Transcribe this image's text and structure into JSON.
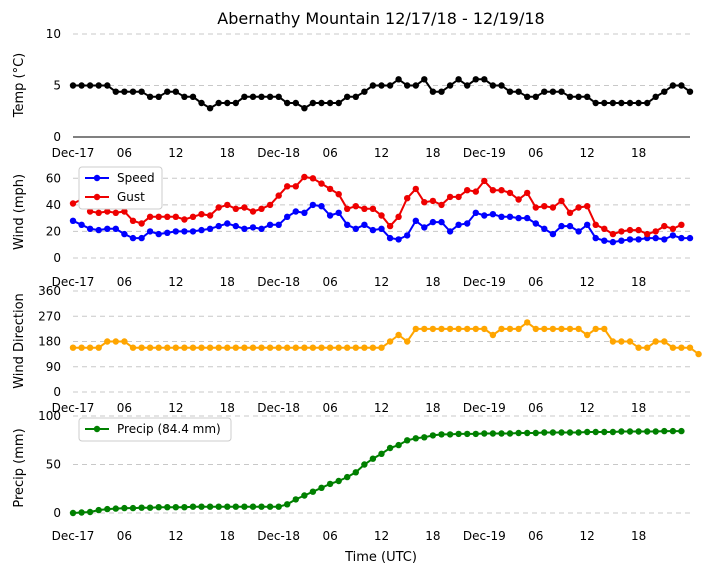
{
  "chart_data": {
    "title": "Abernathy Mountain 12/17/18 - 12/19/18",
    "xlabel": "Time (UTC)",
    "x_tick_labels": [
      "Dec-17",
      "06",
      "12",
      "18",
      "Dec-18",
      "06",
      "12",
      "18",
      "Dec-19",
      "06",
      "12",
      "18"
    ],
    "x_tick_hours": [
      0,
      6,
      12,
      18,
      24,
      30,
      36,
      42,
      48,
      54,
      60,
      66
    ],
    "x_range_hours": [
      0,
      72
    ],
    "panels": [
      {
        "type": "line",
        "ylabel": "Temp (°C)",
        "ylim": [
          0,
          10
        ],
        "yticks": [
          0,
          5,
          10
        ],
        "grid": true,
        "series": [
          {
            "name": "Temp",
            "color": "#000000",
            "values": [
              5,
              5,
              5,
              5,
              5,
              4.4,
              4.4,
              4.4,
              4.4,
              3.9,
              3.9,
              4.4,
              4.4,
              3.9,
              3.9,
              3.3,
              2.8,
              3.3,
              3.3,
              3.3,
              3.9,
              3.9,
              3.9,
              3.9,
              3.9,
              3.3,
              3.3,
              2.8,
              3.3,
              3.3,
              3.3,
              3.3,
              3.9,
              3.9,
              4.4,
              5,
              5,
              5,
              5.6,
              5,
              5,
              5.6,
              4.4,
              4.4,
              5,
              5.6,
              5,
              5.6,
              5.6,
              5,
              5,
              4.4,
              4.4,
              3.9,
              3.9,
              4.4,
              4.4,
              4.4,
              3.9,
              3.9,
              3.9,
              3.3,
              3.3,
              3.3,
              3.3,
              3.3,
              3.3,
              3.3,
              3.9,
              4.4,
              5,
              5,
              4.4
            ]
          }
        ]
      },
      {
        "type": "line",
        "ylabel": "Wind (mph)",
        "ylim": [
          0,
          70
        ],
        "yticks": [
          0,
          20,
          40,
          60
        ],
        "grid": true,
        "legend": {
          "position": "top-left"
        },
        "series": [
          {
            "name": "Speed",
            "color": "#0000ff",
            "values": [
              28,
              25,
              22,
              21,
              22,
              22,
              18,
              15,
              15,
              20,
              18,
              19,
              20,
              20,
              20,
              21,
              22,
              24,
              26,
              24,
              22,
              23,
              22,
              25,
              25,
              31,
              35,
              34,
              40,
              39,
              32,
              34,
              25,
              22,
              25,
              21,
              22,
              15,
              14,
              17,
              28,
              23,
              27,
              27,
              20,
              25,
              26,
              34,
              32,
              33,
              31,
              31,
              30,
              30,
              26,
              22,
              18,
              24,
              24,
              20,
              25,
              15,
              13,
              12,
              13,
              14,
              14,
              15,
              15,
              14,
              17,
              15,
              15
            ]
          },
          {
            "name": "Gust",
            "color": "#ee0000",
            "values": [
              41,
              44,
              35,
              34,
              35,
              34,
              35,
              28,
              26,
              31,
              31,
              31,
              31,
              29,
              31,
              33,
              32,
              38,
              40,
              37,
              38,
              35,
              37,
              40,
              47,
              54,
              54,
              61,
              60,
              56,
              52,
              48,
              37,
              39,
              37,
              37,
              32,
              24,
              31,
              45,
              52,
              42,
              43,
              40,
              46,
              46,
              51,
              50,
              58,
              51,
              51,
              49,
              44,
              49,
              38,
              39,
              38,
              43,
              34,
              38,
              39,
              25,
              22,
              18,
              20,
              21,
              21,
              18,
              20,
              24,
              22,
              25
            ]
          }
        ]
      },
      {
        "type": "line",
        "ylabel": "Wind Direction",
        "ylim": [
          0,
          360
        ],
        "yticks": [
          0,
          90,
          180,
          270,
          360
        ],
        "grid": true,
        "series": [
          {
            "name": "Direction",
            "color": "#ffa500",
            "values": [
              158,
              158,
              158,
              158,
              180,
              180,
              180,
              158,
              158,
              158,
              158,
              158,
              158,
              158,
              158,
              158,
              158,
              158,
              158,
              158,
              158,
              158,
              158,
              158,
              158,
              158,
              158,
              158,
              158,
              158,
              158,
              158,
              158,
              158,
              158,
              158,
              158,
              180,
              203,
              180,
              225,
              225,
              225,
              225,
              225,
              225,
              225,
              225,
              225,
              203,
              225,
              225,
              225,
              248,
              225,
              225,
              225,
              225,
              225,
              225,
              203,
              225,
              225,
              180,
              180,
              180,
              158,
              158,
              180,
              180,
              158,
              158,
              158,
              135
            ]
          }
        ]
      },
      {
        "type": "line",
        "ylabel": "Precip (mm)",
        "ylim": [
          0,
          100
        ],
        "yticks": [
          0,
          50,
          100
        ],
        "grid": true,
        "legend": {
          "position": "top-left"
        },
        "series": [
          {
            "name": "Precip (84.4 mm)",
            "color": "#008000",
            "values": [
              0,
              0.5,
              1,
              3,
              4,
              4.5,
              5,
              5,
              5.5,
              5.5,
              6,
              6,
              6,
              6,
              6.5,
              6.5,
              6.5,
              6.5,
              6.5,
              6.5,
              6.5,
              6.5,
              6.5,
              6.5,
              6.5,
              9,
              14,
              18,
              22,
              26,
              30,
              33,
              37,
              42,
              50,
              56,
              61,
              67,
              70,
              75,
              77,
              78,
              80,
              81,
              81,
              81.5,
              81.5,
              81.5,
              82,
              82,
              82,
              82,
              82.5,
              82.5,
              82.5,
              83,
              83,
              83,
              83,
              83,
              83.5,
              83.5,
              83.5,
              83.5,
              84,
              84,
              84,
              84,
              84,
              84.4,
              84.4,
              84.4
            ]
          }
        ]
      }
    ]
  }
}
